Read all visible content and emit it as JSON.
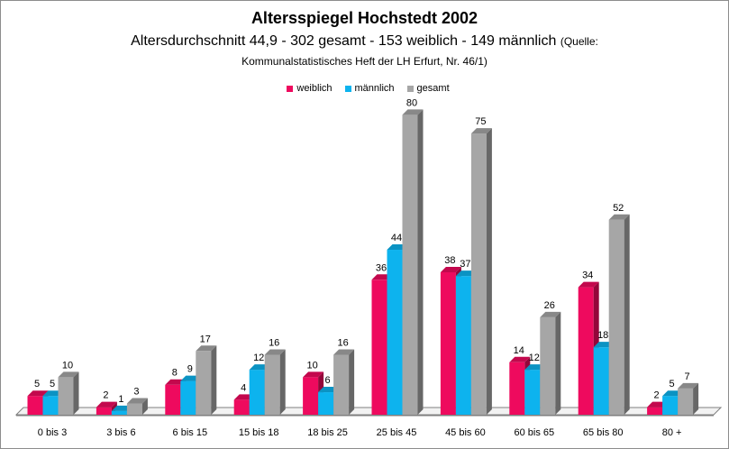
{
  "chart_data": {
    "type": "bar",
    "title": "Altersspiegel Hochstedt 2002",
    "subtitle": "Altersdurchschnitt 44,9 - 302 gesamt - 153 weiblich - 149 männlich",
    "subtitle_source_a": "(Quelle:",
    "subtitle_source_b": "Kommunalstatistisches Heft der LH Erfurt, Nr. 46/1)",
    "categories": [
      "0 bis 3",
      "3 bis 6",
      "6 bis 15",
      "15 bis 18",
      "18 bis 25",
      "25 bis 45",
      "45 bis 60",
      "60 bis 65",
      "65 bis 80",
      "80 +"
    ],
    "series": [
      {
        "name": "weiblich",
        "color": "#ee0a5e",
        "values": [
          5,
          2,
          8,
          4,
          10,
          36,
          38,
          14,
          34,
          2
        ]
      },
      {
        "name": "männlich",
        "color": "#0db3ee",
        "values": [
          5,
          1,
          9,
          12,
          6,
          44,
          37,
          12,
          18,
          5
        ]
      },
      {
        "name": "gesamt",
        "color": "#a6a6a6",
        "values": [
          10,
          3,
          17,
          16,
          16,
          80,
          75,
          26,
          52,
          7
        ]
      }
    ],
    "ylim": [
      0,
      82
    ],
    "data_labels": true,
    "legend_position": "top",
    "grid": false,
    "style": "3d-clustered-columns"
  }
}
